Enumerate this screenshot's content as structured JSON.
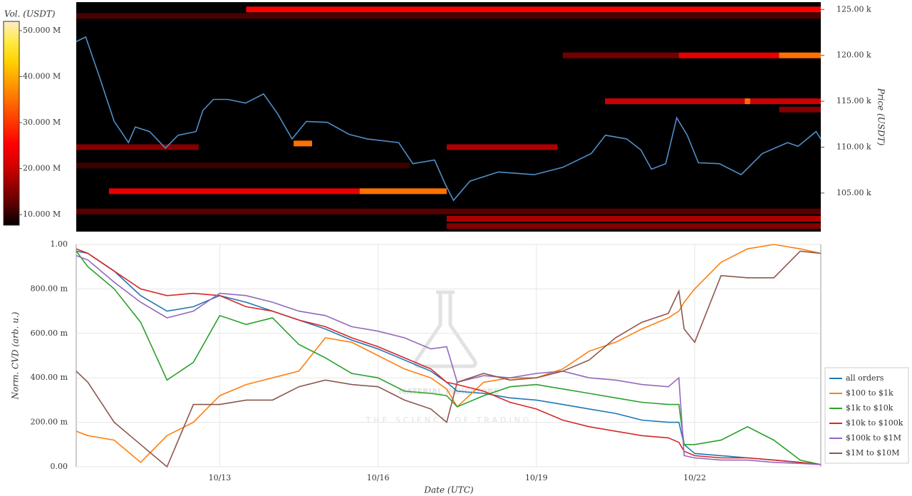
{
  "chart_data": [
    {
      "type": "heatmap",
      "colorbar_label": "Vol. (USDT)",
      "ylabel": "Price (USDT)",
      "xlim": [
        10.28,
        24.39
      ],
      "ylim": [
        100800,
        125800
      ],
      "yticks": [
        {
          "value": 105000,
          "label": "105.00 k"
        },
        {
          "value": 110000,
          "label": "110.00 k"
        },
        {
          "value": 115000,
          "label": "115.00 k"
        },
        {
          "value": 120000,
          "label": "120.00 k"
        },
        {
          "value": 125000,
          "label": "125.00 k"
        }
      ],
      "clim": [
        7700000,
        52000000
      ],
      "cticks": [
        {
          "value": 10000000,
          "label": "10.000 M"
        },
        {
          "value": 20000000,
          "label": "20.000 M"
        },
        {
          "value": 30000000,
          "label": "30.000 M"
        },
        {
          "value": 40000000,
          "label": "40.000 M"
        },
        {
          "value": 50000000,
          "label": "50.000 M"
        }
      ],
      "bands": [
        {
          "price": 125000,
          "start": 13.5,
          "end": 24.39,
          "volume": 25000000
        },
        {
          "price": 124300,
          "start": 10.28,
          "end": 24.39,
          "volume": 11000000
        },
        {
          "price": 120000,
          "start": 19.5,
          "end": 21.7,
          "volume": 14000000
        },
        {
          "price": 120000,
          "start": 21.7,
          "end": 23.6,
          "volume": 22000000
        },
        {
          "price": 120000,
          "start": 23.6,
          "end": 24.39,
          "volume": 35000000
        },
        {
          "price": 115000,
          "start": 20.3,
          "end": 24.39,
          "volume": 20000000
        },
        {
          "price": 115000,
          "start": 22.95,
          "end": 23.05,
          "volume": 35000000
        },
        {
          "price": 114100,
          "start": 23.6,
          "end": 24.39,
          "volume": 15000000
        },
        {
          "price": 110400,
          "start": 14.4,
          "end": 14.75,
          "volume": 35000000
        },
        {
          "price": 110000,
          "start": 10.28,
          "end": 12.6,
          "volume": 15000000
        },
        {
          "price": 110000,
          "start": 17.3,
          "end": 19.4,
          "volume": 18000000
        },
        {
          "price": 108000,
          "start": 10.28,
          "end": 16.6,
          "volume": 10000000
        },
        {
          "price": 105200,
          "start": 10.9,
          "end": 15.65,
          "volume": 22000000
        },
        {
          "price": 105200,
          "start": 15.65,
          "end": 17.3,
          "volume": 35000000
        },
        {
          "price": 103000,
          "start": 10.28,
          "end": 24.39,
          "volume": 12000000
        },
        {
          "price": 102200,
          "start": 17.3,
          "end": 24.39,
          "volume": 18000000
        },
        {
          "price": 101400,
          "start": 17.3,
          "end": 24.39,
          "volume": 15000000
        }
      ],
      "x": [
        10.28,
        10.46,
        10.59,
        10.73,
        10.86,
        11.0,
        11.13,
        11.27,
        11.4,
        11.67,
        11.97,
        12.21,
        12.55,
        12.68,
        12.88,
        13.15,
        13.49,
        13.83,
        14.1,
        14.37,
        14.64,
        15.04,
        15.45,
        15.79,
        16.39,
        16.66,
        17.07,
        17.27,
        17.43,
        17.74,
        18.28,
        18.96,
        19.5,
        20.04,
        20.31,
        20.71,
        20.98,
        21.18,
        21.45,
        21.66,
        21.86,
        22.07,
        22.47,
        22.88,
        23.28,
        23.76,
        23.96,
        24.3,
        24.39
      ],
      "series": [
        {
          "color": "#4f8fc9",
          "values": [
            121500,
            122000,
            119800,
            117500,
            115200,
            112800,
            111700,
            110500,
            112200,
            111700,
            109900,
            111300,
            111700,
            114000,
            115200,
            115200,
            114800,
            115800,
            113600,
            110900,
            112800,
            112700,
            111400,
            110900,
            110500,
            108200,
            108600,
            106000,
            104200,
            106300,
            107300,
            107000,
            107800,
            109300,
            111300,
            110900,
            109700,
            107600,
            108200,
            113200,
            111300,
            108300,
            108200,
            107000,
            109300,
            110500,
            110100,
            111700,
            110900
          ]
        }
      ]
    },
    {
      "type": "line",
      "ylabel": "Norm. CVD (arb. u.)",
      "xlabel": "Date (UTC)",
      "watermark": [
        "MATERIAL INDICATORS",
        "THE SCIENCE OF TRADING"
      ],
      "xlim": [
        10.28,
        24.39
      ],
      "xticks": [
        {
          "value": 13,
          "label": "10/13"
        },
        {
          "value": 16,
          "label": "10/16"
        },
        {
          "value": 19,
          "label": "10/19"
        },
        {
          "value": 22,
          "label": "10/22"
        }
      ],
      "ylim": [
        0,
        1
      ],
      "yticks": [
        {
          "value": 0,
          "label": "0.00"
        },
        {
          "value": 0.2,
          "label": "200.00 m"
        },
        {
          "value": 0.4,
          "label": "400.00 m"
        },
        {
          "value": 0.6,
          "label": "600.00 m"
        },
        {
          "value": 0.8,
          "label": "800.00 m"
        },
        {
          "value": 1,
          "label": "1.00"
        }
      ],
      "grid": true,
      "legend": "lower right",
      "x": [
        10.28,
        10.5,
        11,
        11.5,
        12,
        12.5,
        13,
        13.5,
        14,
        14.5,
        15,
        15.5,
        16,
        16.5,
        17,
        17.3,
        17.5,
        18,
        18.5,
        19,
        19.5,
        20,
        20.5,
        21,
        21.5,
        21.7,
        21.8,
        22,
        22.5,
        23,
        23.5,
        24,
        24.39
      ],
      "series": [
        {
          "name": "all orders",
          "color": "#1f77b4",
          "values": [
            0.97,
            0.96,
            0.88,
            0.77,
            0.7,
            0.72,
            0.77,
            0.74,
            0.7,
            0.66,
            0.62,
            0.57,
            0.53,
            0.48,
            0.43,
            0.38,
            0.34,
            0.33,
            0.31,
            0.3,
            0.28,
            0.26,
            0.24,
            0.21,
            0.2,
            0.2,
            0.1,
            0.06,
            0.05,
            0.04,
            0.03,
            0.02,
            0.01
          ]
        },
        {
          "name": "$100 to $1k",
          "color": "#ff7f0e",
          "values": [
            0.16,
            0.14,
            0.12,
            0.02,
            0.14,
            0.2,
            0.32,
            0.37,
            0.4,
            0.43,
            0.58,
            0.56,
            0.5,
            0.44,
            0.4,
            0.35,
            0.27,
            0.38,
            0.4,
            0.4,
            0.44,
            0.52,
            0.56,
            0.62,
            0.67,
            0.7,
            0.74,
            0.8,
            0.92,
            0.98,
            1.0,
            0.98,
            0.96
          ]
        },
        {
          "name": "$1k to $10k",
          "color": "#2ca02c",
          "values": [
            0.97,
            0.9,
            0.8,
            0.65,
            0.39,
            0.47,
            0.68,
            0.64,
            0.67,
            0.55,
            0.49,
            0.42,
            0.4,
            0.34,
            0.33,
            0.32,
            0.27,
            0.32,
            0.36,
            0.37,
            0.35,
            0.33,
            0.31,
            0.29,
            0.28,
            0.28,
            0.1,
            0.1,
            0.12,
            0.18,
            0.12,
            0.03,
            0.01
          ]
        },
        {
          "name": "$10k to $100k",
          "color": "#d62728",
          "values": [
            0.98,
            0.96,
            0.88,
            0.8,
            0.77,
            0.78,
            0.77,
            0.72,
            0.7,
            0.66,
            0.63,
            0.58,
            0.54,
            0.49,
            0.44,
            0.38,
            0.37,
            0.34,
            0.29,
            0.26,
            0.21,
            0.18,
            0.16,
            0.14,
            0.13,
            0.11,
            0.07,
            0.05,
            0.04,
            0.04,
            0.03,
            0.02,
            0.01
          ]
        },
        {
          "name": "$100k to $1M",
          "color": "#9467bd",
          "values": [
            0.95,
            0.93,
            0.83,
            0.74,
            0.67,
            0.7,
            0.78,
            0.77,
            0.74,
            0.7,
            0.68,
            0.63,
            0.61,
            0.58,
            0.53,
            0.54,
            0.38,
            0.41,
            0.4,
            0.42,
            0.43,
            0.4,
            0.39,
            0.37,
            0.36,
            0.4,
            0.05,
            0.04,
            0.03,
            0.03,
            0.02,
            0.015,
            0.01
          ]
        },
        {
          "name": "$1M to $10M",
          "color": "#8c564b",
          "values": [
            0.43,
            0.38,
            0.2,
            0.1,
            0.0,
            0.28,
            0.28,
            0.3,
            0.3,
            0.36,
            0.39,
            0.37,
            0.36,
            0.3,
            0.26,
            0.2,
            0.38,
            0.42,
            0.39,
            0.4,
            0.43,
            0.48,
            0.58,
            0.65,
            0.69,
            0.79,
            0.62,
            0.56,
            0.86,
            0.85,
            0.85,
            0.97,
            0.96
          ]
        }
      ]
    }
  ]
}
